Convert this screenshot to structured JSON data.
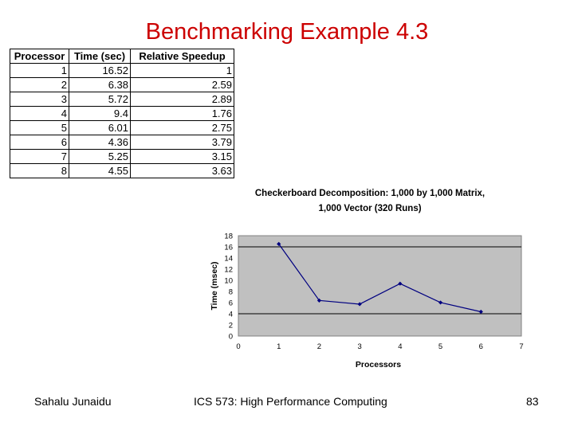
{
  "slide": {
    "title": "Benchmarking Example 4.3",
    "title_color": "#cc0000"
  },
  "table": {
    "headers": [
      "Processor",
      "Time (sec)",
      "Relative Speedup"
    ],
    "rows": [
      [
        "1",
        "16.52",
        "1"
      ],
      [
        "2",
        "6.38",
        "2.59"
      ],
      [
        "3",
        "5.72",
        "2.89"
      ],
      [
        "4",
        "9.4",
        "1.76"
      ],
      [
        "5",
        "6.01",
        "2.75"
      ],
      [
        "6",
        "4.36",
        "3.79"
      ],
      [
        "7",
        "5.25",
        "3.15"
      ],
      [
        "8",
        "4.55",
        "3.63"
      ]
    ]
  },
  "chart_data": {
    "type": "line",
    "title_line1": "Checkerboard Decomposition: 1,000 by 1,000 Matrix,",
    "title_line2": "1,000 Vector (320 Runs)",
    "xlabel": "Processors",
    "ylabel": "Time (msec)",
    "x": [
      1,
      2,
      3,
      4,
      5,
      6
    ],
    "y": [
      16.52,
      6.38,
      5.72,
      9.4,
      6.01,
      4.36
    ],
    "xlim": [
      0,
      7
    ],
    "ylim": [
      0,
      18
    ],
    "xticks": [
      "0",
      "1",
      "2",
      "3",
      "4",
      "5",
      "6",
      "7"
    ],
    "yticks": [
      "0",
      "2",
      "4",
      "6",
      "8",
      "10",
      "12",
      "14",
      "16",
      "18"
    ],
    "grid_lines_y": [
      4,
      16
    ],
    "plot_background": "#c0c0c0",
    "line_color": "#000080"
  },
  "footer": {
    "left": "Sahalu Junaidu",
    "center": "ICS 573: High Performance Computing",
    "right": "83"
  }
}
